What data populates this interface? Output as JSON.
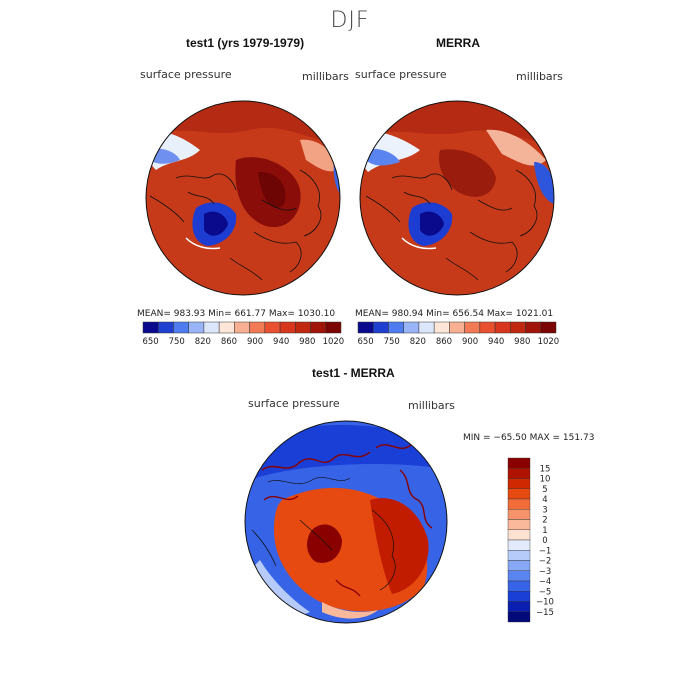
{
  "season": "DJF",
  "chart_data": [
    {
      "type": "heatmap",
      "projection": "north-polar-stereographic",
      "title": "test1 (yrs 1979-1979)",
      "variable": "surface pressure",
      "units": "millibars",
      "stats": {
        "mean": "983.93",
        "min": "661.77",
        "max": "1030.10",
        "text": "MEAN= 983.93   Min= 661.77   Max= 1030.10"
      },
      "colorbar_levels": [
        "650",
        "750",
        "820",
        "860",
        "900",
        "940",
        "980",
        "1020"
      ]
    },
    {
      "type": "heatmap",
      "projection": "north-polar-stereographic",
      "title": "MERRA",
      "variable": "surface pressure",
      "units": "millibars",
      "stats": {
        "mean": "980.94",
        "min": "656.54",
        "max": "1021.01",
        "text": "MEAN= 980.94   Min= 656.54   Max= 1021.01"
      },
      "colorbar_levels": [
        "650",
        "750",
        "820",
        "860",
        "900",
        "940",
        "980",
        "1020"
      ]
    },
    {
      "type": "heatmap",
      "projection": "north-polar-stereographic",
      "title": "test1 - MERRA",
      "variable": "surface pressure",
      "units": "millibars",
      "stats": {
        "min": "-65.50",
        "max": "151.73",
        "text": "MIN = −65.50 MAX = 151.73"
      },
      "colorbar_levels": [
        "15",
        "10",
        "5",
        "4",
        "3",
        "2",
        "1",
        "0",
        "−1",
        "−2",
        "−3",
        "−4",
        "−5",
        "−10",
        "−15"
      ]
    }
  ],
  "colors": {
    "abs_scale": [
      "#0a0a8c",
      "#1f3fd0",
      "#4f7cf0",
      "#9ab5f7",
      "#dbe6fb",
      "#fde6d8",
      "#f8b092",
      "#f27a55",
      "#e9502f",
      "#d8361d",
      "#c0280f",
      "#a0140a",
      "#7a0505"
    ],
    "diff_scale": [
      "#8a0000",
      "#b01200",
      "#d02800",
      "#e64a10",
      "#f26c3a",
      "#f7936a",
      "#fbb99c",
      "#fde2d4",
      "#e2ebfc",
      "#b6cbf9",
      "#86a8f5",
      "#5a84ef",
      "#3763e6",
      "#1a3fd6",
      "#0a1fb0",
      "#020a7a"
    ]
  }
}
